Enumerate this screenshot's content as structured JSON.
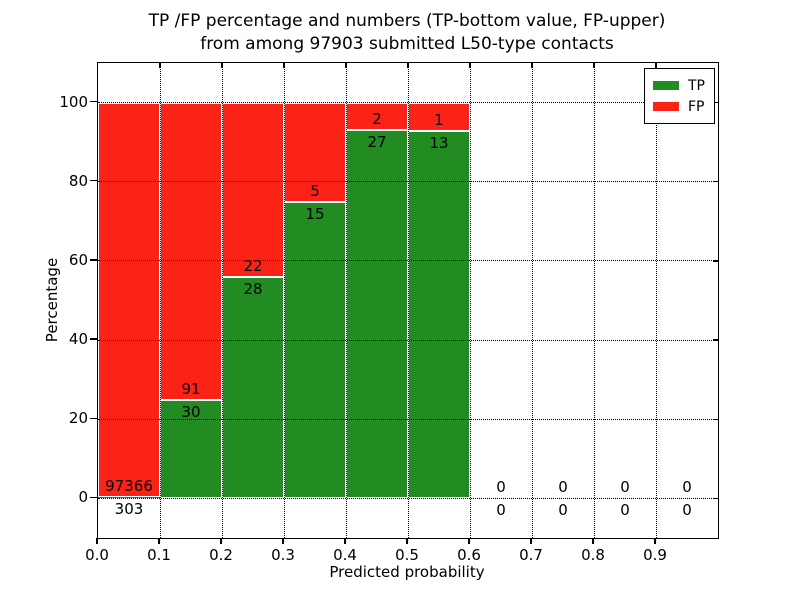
{
  "title": {
    "line1": "TP /FP percentage and numbers (TP-bottom value, FP-upper)",
    "line2": "from among 97903 submitted L50-type contacts"
  },
  "chart_data": {
    "type": "bar",
    "stacked": true,
    "title": "TP /FP percentage and numbers (TP-bottom value, FP-upper) from among 97903 submitted L50-type contacts",
    "xlabel": "Predicted probability",
    "ylabel": "Percentage",
    "categories": [
      "0.0-0.1",
      "0.1-0.2",
      "0.2-0.3",
      "0.3-0.4",
      "0.4-0.5",
      "0.5-0.6",
      "0.6-0.7",
      "0.7-0.8",
      "0.8-0.9",
      "0.9-1.0"
    ],
    "bin_starts": [
      0.0,
      0.1,
      0.2,
      0.3,
      0.4,
      0.5,
      0.6,
      0.7,
      0.8,
      0.9
    ],
    "bin_width": 0.1,
    "series": [
      {
        "name": "TP",
        "color": "#228b22",
        "counts": [
          303,
          30,
          28,
          15,
          27,
          13,
          0,
          0,
          0,
          0
        ]
      },
      {
        "name": "FP",
        "color": "#fb2318",
        "counts": [
          97366,
          91,
          22,
          5,
          2,
          1,
          0,
          0,
          0,
          0
        ]
      }
    ],
    "tp_percent": [
      0.31,
      24.79,
      56.0,
      75.0,
      93.1,
      92.86,
      0,
      0,
      0,
      0
    ],
    "xlim": [
      0.0,
      1.0
    ],
    "ylim": [
      -10,
      110
    ],
    "xticks": [
      "0.0",
      "0.1",
      "0.2",
      "0.3",
      "0.4",
      "0.5",
      "0.6",
      "0.7",
      "0.8",
      "0.9"
    ],
    "yticks": [
      0,
      20,
      40,
      60,
      80,
      100
    ],
    "grid": "dotted",
    "legend_position": "upper right"
  }
}
